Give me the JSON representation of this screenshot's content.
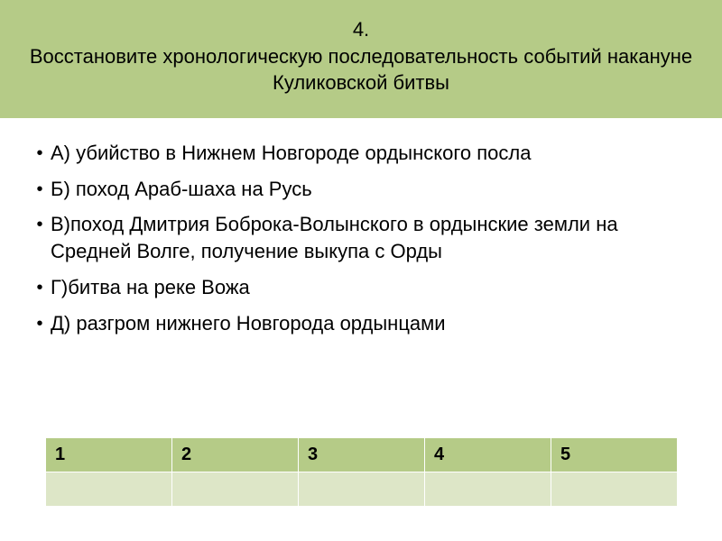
{
  "header": {
    "number": "4.",
    "text": "Восстановите  хронологическую последовательность событий накануне Куликовской битвы"
  },
  "items": [
    {
      "text": "А) убийство в Нижнем Новгороде ордынского посла"
    },
    {
      "text": "Б) поход Араб-шаха на Русь"
    },
    {
      "text": "В)поход Дмитрия Боброка-Волынского в ордынские земли на Средней Волге, получение выкупа с Орды"
    },
    {
      "text": "Г)битва на реке Вожа"
    },
    {
      "text": "Д) разгром нижнего Новгорода ордынцами"
    }
  ],
  "table": {
    "headers": [
      "1",
      "2",
      "3",
      "4",
      "5"
    ],
    "answers": [
      "",
      "",
      "",
      "",
      ""
    ]
  },
  "colors": {
    "header_bg": "#b5cb87",
    "table_head_bg": "#b5cb87",
    "table_body_bg": "#dde6c7",
    "text": "#000000"
  }
}
